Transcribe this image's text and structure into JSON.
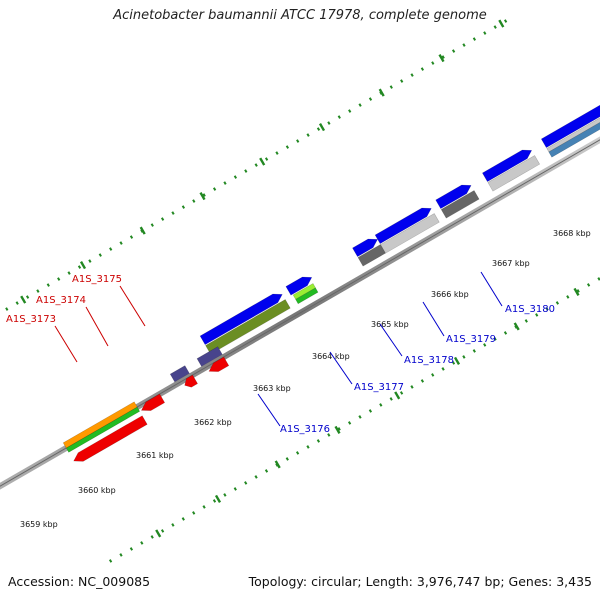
{
  "title": "Acinetobacter baumannii ATCC 17978, complete genome",
  "footer": {
    "accession": "Accession: NC_009085",
    "summary": "Topology: circular; Length: 3,976,747 bp; Genes: 3,435"
  },
  "colors": {
    "forward_cds": "#0000ee",
    "reverse_cds": "#ee0000",
    "red_label": "#cc0000",
    "blue_label": "#0000cc",
    "backbone": "#888888",
    "tick": "#228822",
    "olive": "#6b8e23",
    "lime": "#99ee33",
    "slate": "#48448c",
    "dark_gray": "#666666",
    "light_gray": "#c8c8c8",
    "orange": "#ff9900",
    "green": "#22bb22",
    "steel": "#4682b4"
  },
  "kbp_labels": [
    "3659 kbp",
    "3660 kbp",
    "3661 kbp",
    "3662 kbp",
    "3663 kbp",
    "3664 kbp",
    "3665 kbp",
    "3666 kbp",
    "3667 kbp",
    "3668 kbp"
  ],
  "gene_labels_red": [
    "A1S_3173",
    "A1S_3174",
    "A1S_3175"
  ],
  "gene_labels_blue": [
    "A1S_3176",
    "A1S_3177",
    "A1S_3178",
    "A1S_3179",
    "A1S_3180"
  ]
}
